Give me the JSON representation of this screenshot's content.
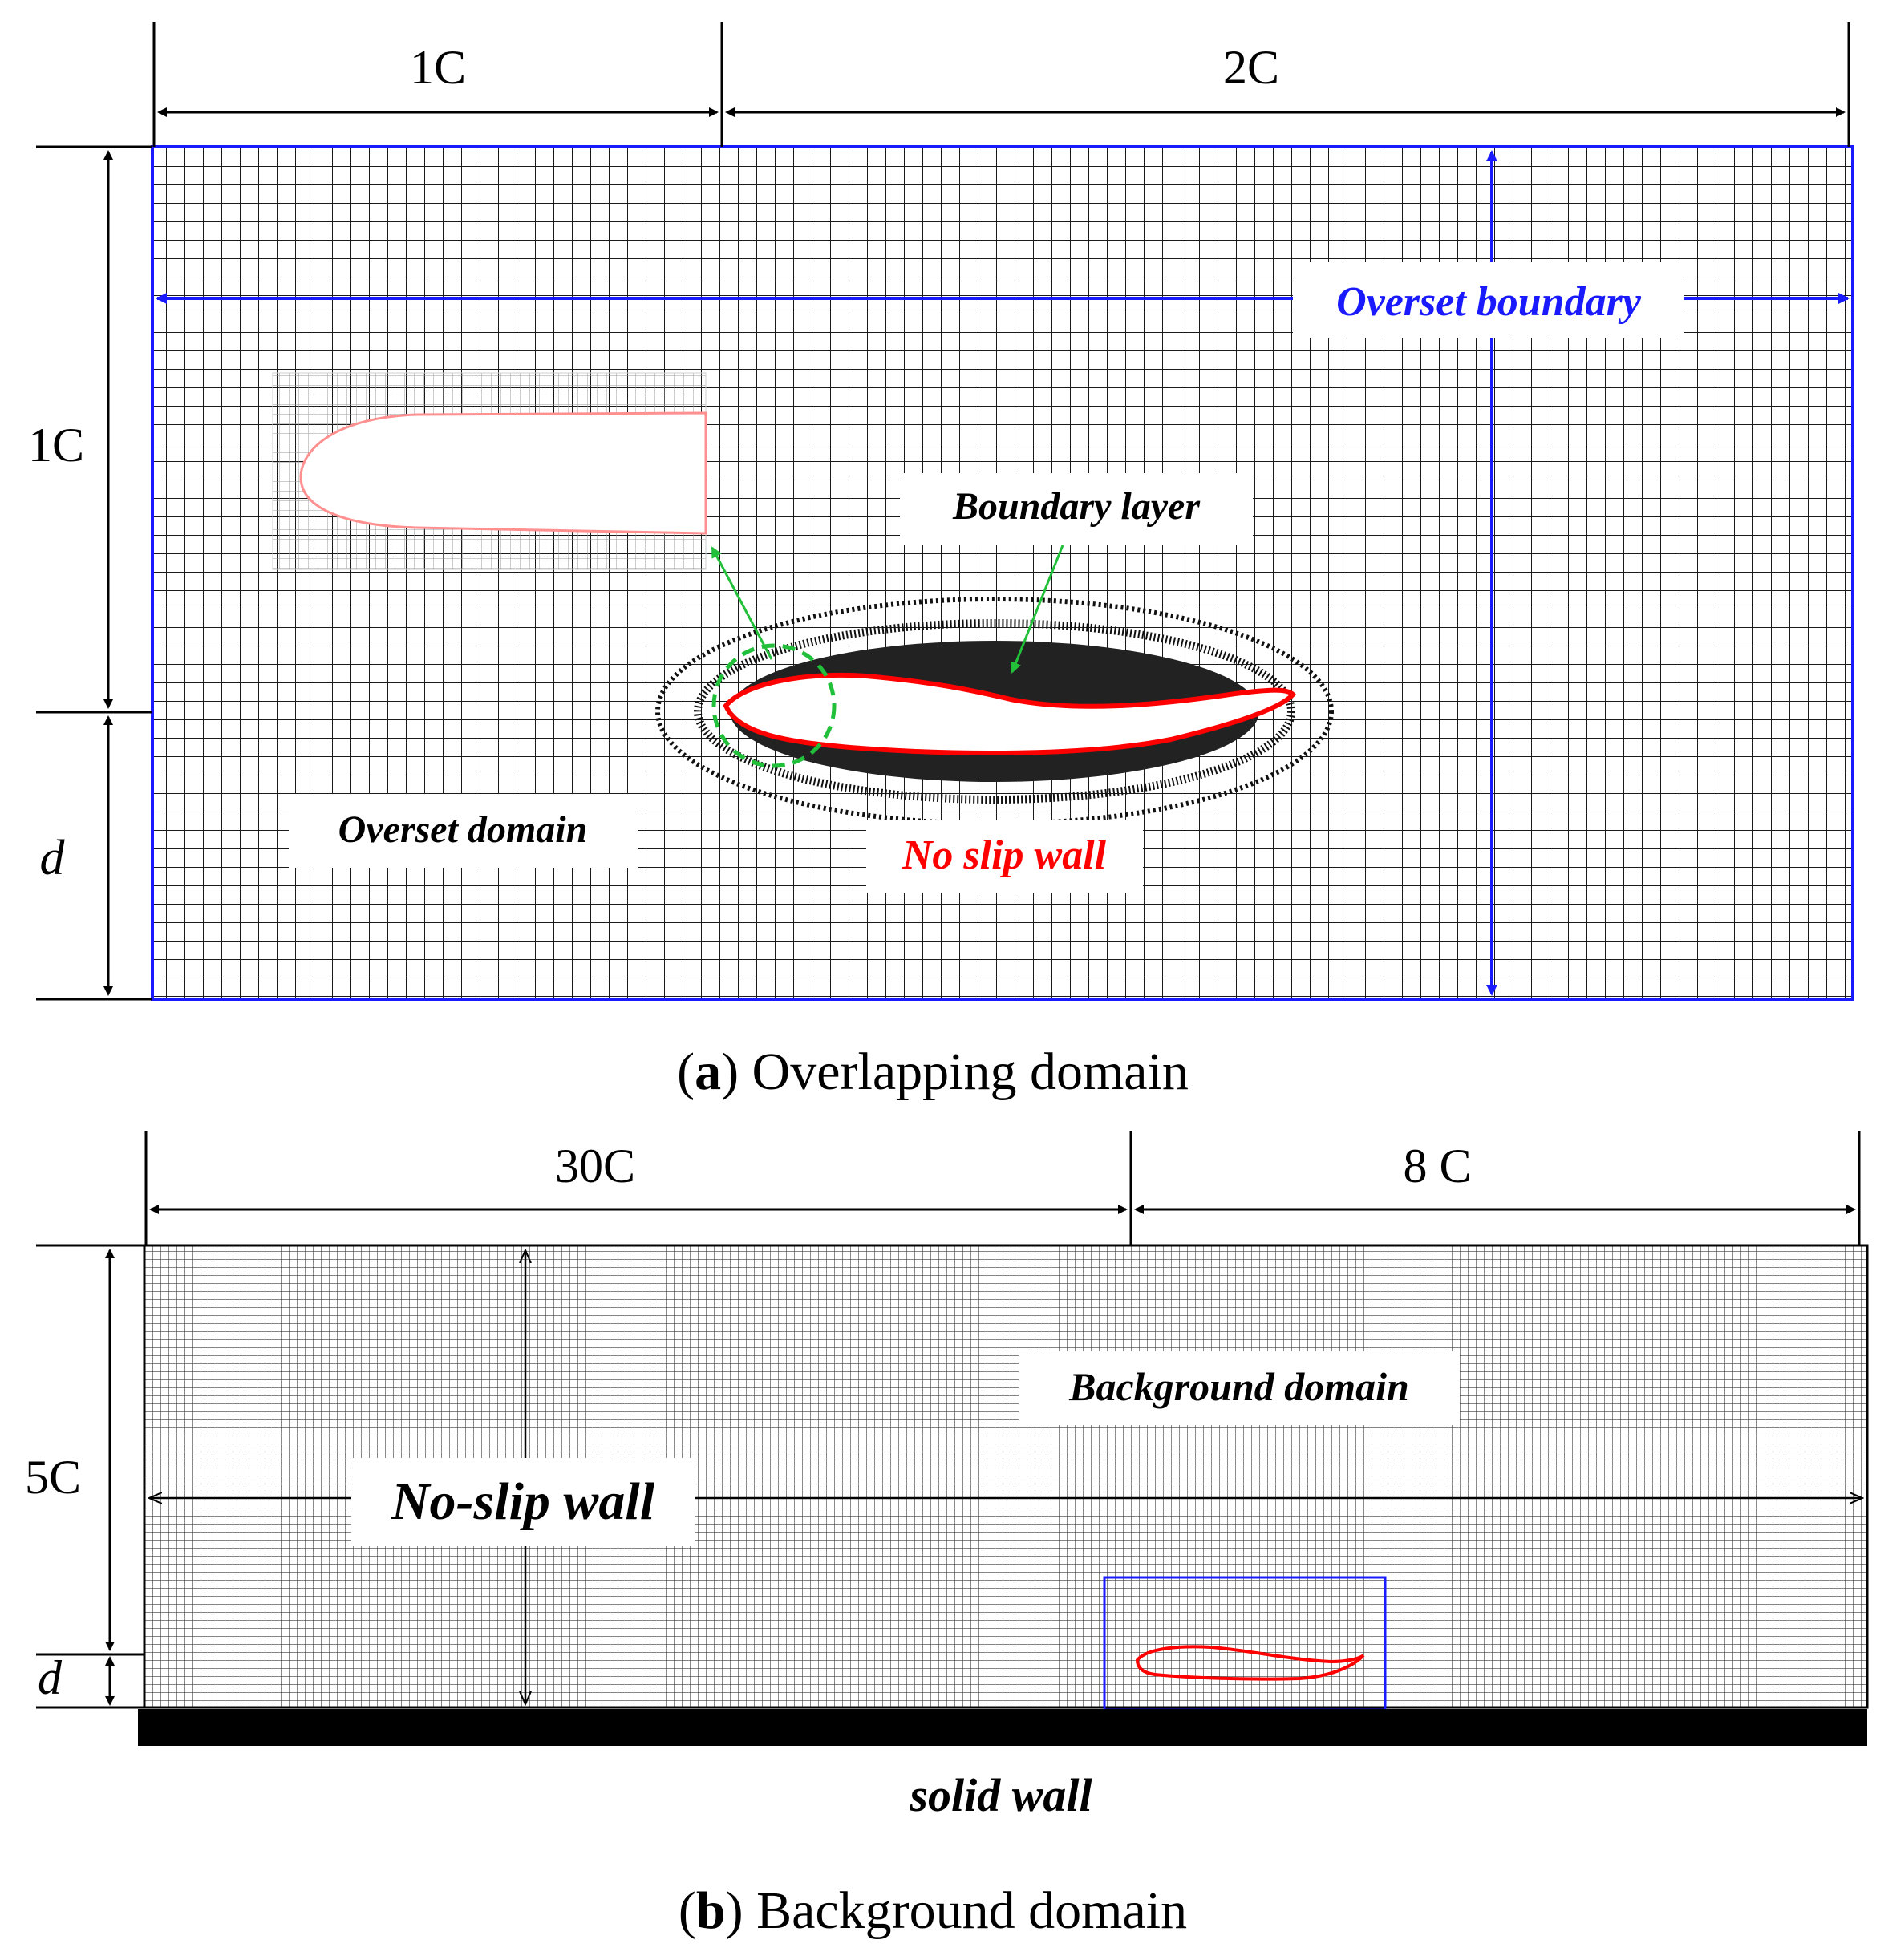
{
  "panel_a": {
    "dim_top_left": "1C",
    "dim_top_right": "2C",
    "dim_left_upper": "1C",
    "dim_left_lower": "d",
    "label_overset_boundary": "Overset boundary",
    "label_boundary_layer": "Boundary layer",
    "label_overset_domain": "Overset domain",
    "label_no_slip_wall": "No slip wall",
    "caption_letter": "a",
    "caption_text": "Overlapping domain"
  },
  "panel_b": {
    "dim_top_left": "30C",
    "dim_top_right": "8 C",
    "dim_left_upper": "5C",
    "dim_left_lower": "d",
    "label_background_domain": "Background domain",
    "label_no_slip_wall": "No-slip wall",
    "label_solid_wall": "solid wall",
    "caption_letter": "b",
    "caption_text": "Background domain"
  },
  "colors": {
    "boundary_blue": "#1a1aff",
    "wall_red": "#ff0000",
    "annotation_green": "#22c03a",
    "grid_line": "#1a1a1a"
  }
}
